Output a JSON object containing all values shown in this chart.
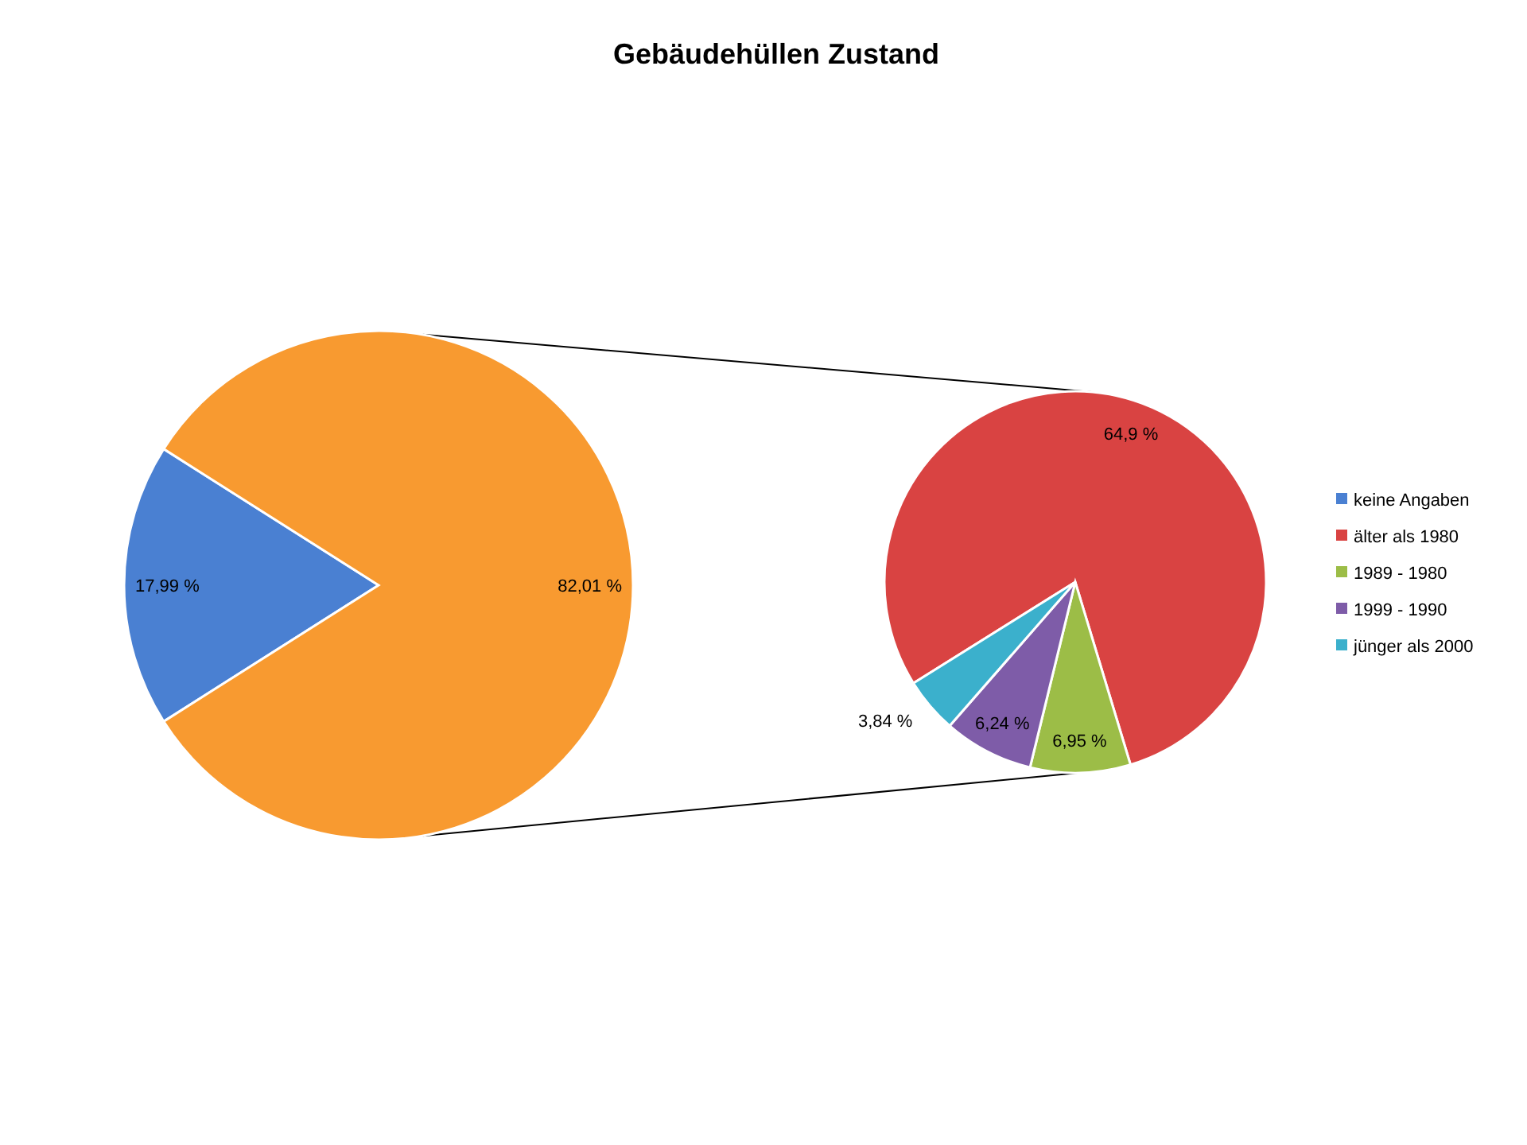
{
  "chart_data": [
    {
      "type": "pie",
      "title": "Gebäudehüllen Zustand",
      "categories": [
        "keine Angaben",
        null
      ],
      "values": [
        17.99,
        82.01
      ],
      "colors": [
        "#4a80d2",
        "#f89a30"
      ],
      "value_labels": [
        "17,99 %",
        "82,01 %"
      ],
      "legend": "right"
    },
    {
      "type": "pie",
      "categories": [
        "älter als 1980",
        "1989 - 1980",
        "1999 - 1990",
        "jünger als 2000"
      ],
      "values": [
        64.9,
        6.95,
        6.24,
        3.84
      ],
      "colors": [
        "#d94342",
        "#9cbd47",
        "#7e5ca8",
        "#3bb0cc"
      ],
      "value_labels": [
        "64,9 %",
        "6,95 %",
        "6,24 %",
        "3,84 %"
      ],
      "legend": "right"
    }
  ]
}
